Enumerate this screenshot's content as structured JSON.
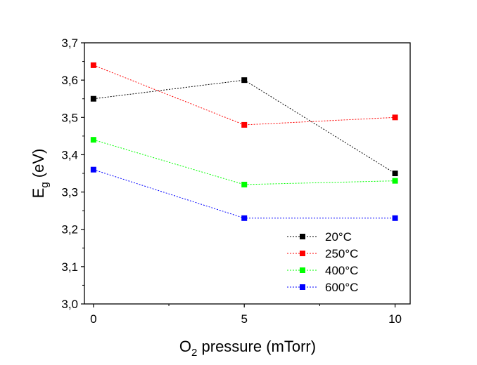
{
  "chart_data": {
    "type": "line",
    "x": [
      0,
      5,
      10
    ],
    "xlabel": {
      "main": "O",
      "sub": "2",
      "rest": " pressure (mTorr)"
    },
    "ylabel": {
      "main": "E",
      "sub": "g",
      "rest": " (eV)"
    },
    "xlim": [
      -0.3,
      10.5
    ],
    "ylim": [
      3.0,
      3.7
    ],
    "xticks": [
      0,
      5,
      10
    ],
    "xtick_labels": [
      "0",
      "5",
      "10"
    ],
    "yticks": [
      3.0,
      3.1,
      3.2,
      3.3,
      3.4,
      3.5,
      3.6,
      3.7
    ],
    "ytick_labels": [
      "3,0",
      "3,1",
      "3,2",
      "3,3",
      "3,4",
      "3,5",
      "3,6",
      "3,7"
    ],
    "grid": false,
    "legend_position": "bottom-right",
    "series": [
      {
        "name": "20°C",
        "values": [
          3.55,
          3.6,
          3.35
        ],
        "color": "#000000"
      },
      {
        "name": "250°C",
        "values": [
          3.64,
          3.48,
          3.5
        ],
        "color": "#ff0000"
      },
      {
        "name": "400°C",
        "values": [
          3.44,
          3.32,
          3.33
        ],
        "color": "#00ff00"
      },
      {
        "name": "600°C",
        "values": [
          3.36,
          3.23,
          3.23
        ],
        "color": "#0000ff"
      }
    ]
  }
}
